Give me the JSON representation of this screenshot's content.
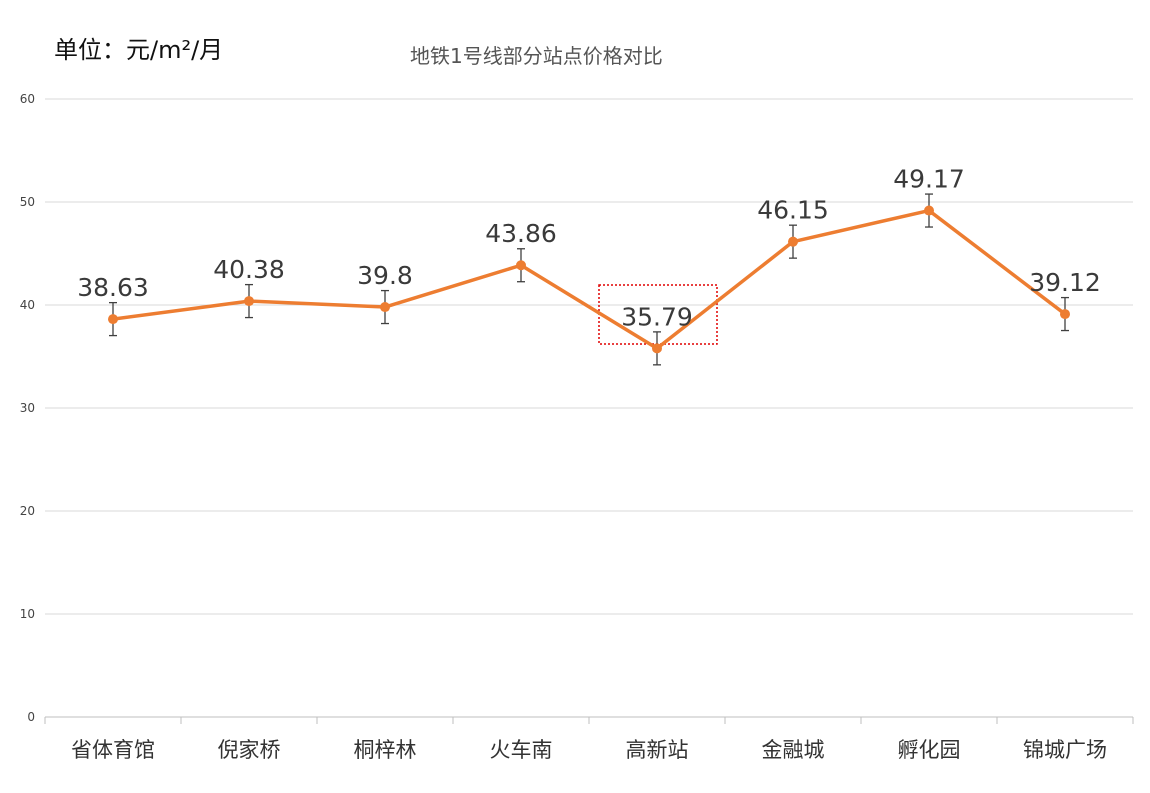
{
  "unit_label": "单位：元/m²/月",
  "chart_data": {
    "type": "line",
    "title": "地铁1号线部分站点价格对比",
    "xlabel": "",
    "ylabel": "",
    "categories": [
      "省体育馆",
      "倪家桥",
      "桐梓林",
      "火车南",
      "高新站",
      "金融城",
      "孵化园",
      "锦城广场"
    ],
    "series": [
      {
        "values": [
          38.63,
          40.38,
          39.8,
          43.86,
          35.79,
          46.15,
          49.17,
          39.12
        ],
        "labels": [
          "38.63",
          "40.38",
          "39.8",
          "43.86",
          "35.79",
          "46.15",
          "49.17",
          "39.12"
        ],
        "error": 1.6,
        "color": "#ed7d31"
      }
    ],
    "ylim": [
      0,
      60
    ],
    "yticks": [
      0,
      10,
      20,
      30,
      40,
      50,
      60
    ],
    "grid": true,
    "legend": "none",
    "highlight": {
      "category": "高新站",
      "style": "red-dotted-box",
      "color": "#e00000"
    },
    "colors": {
      "line": "#ed7d31",
      "grid": "#d9d9d9",
      "error_bar": "#404040"
    }
  }
}
